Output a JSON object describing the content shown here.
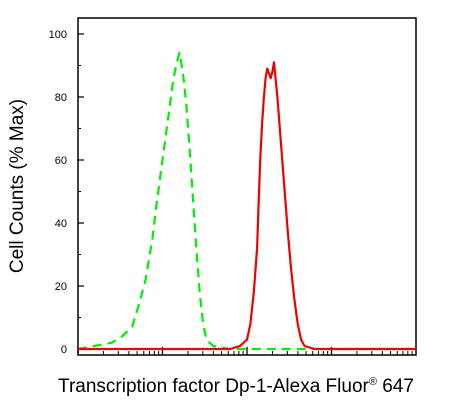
{
  "chart_data": {
    "type": "line",
    "title": "",
    "xlabel_main": "Transcription factor Dp-1-Alexa Fluor",
    "xlabel_sup": "®",
    "xlabel_tail": " 647",
    "ylabel": "Cell Counts (% Max)",
    "xscale": "log",
    "ylim": [
      0,
      100
    ],
    "yticks": [
      0,
      20,
      40,
      60,
      80,
      100
    ],
    "ytick_labels": [
      "0",
      "20",
      "40",
      "60",
      "80",
      "100"
    ],
    "grid": false,
    "legend": "none",
    "series": [
      {
        "style": "dashed",
        "color": "#00ee00",
        "x": [
          0.0,
          0.05,
          0.1,
          0.13,
          0.16,
          0.18,
          0.2,
          0.22,
          0.23,
          0.24,
          0.25,
          0.26,
          0.27,
          0.28,
          0.29,
          0.3,
          0.31,
          0.32,
          0.33,
          0.34,
          0.35,
          0.36,
          0.37,
          0.38,
          0.4,
          0.42,
          0.45,
          0.5,
          1.0
        ],
        "y": [
          0,
          1,
          2,
          4,
          7,
          14,
          22,
          35,
          44,
          52,
          60,
          68,
          76,
          84,
          90,
          94,
          88,
          78,
          64,
          48,
          32,
          18,
          8,
          3,
          1,
          0.5,
          0,
          0,
          0
        ]
      },
      {
        "style": "solid",
        "color": "#ee0000",
        "x": [
          0.0,
          0.45,
          0.48,
          0.5,
          0.51,
          0.52,
          0.53,
          0.535,
          0.54,
          0.545,
          0.55,
          0.555,
          0.56,
          0.57,
          0.575,
          0.58,
          0.59,
          0.6,
          0.61,
          0.62,
          0.63,
          0.64,
          0.65,
          0.66,
          0.67,
          0.7,
          1.0
        ],
        "y": [
          0,
          0,
          1,
          3,
          8,
          18,
          32,
          48,
          62,
          72,
          80,
          86,
          89,
          86,
          88,
          91,
          80,
          66,
          52,
          38,
          26,
          16,
          8,
          3,
          1,
          0,
          0
        ]
      }
    ]
  }
}
